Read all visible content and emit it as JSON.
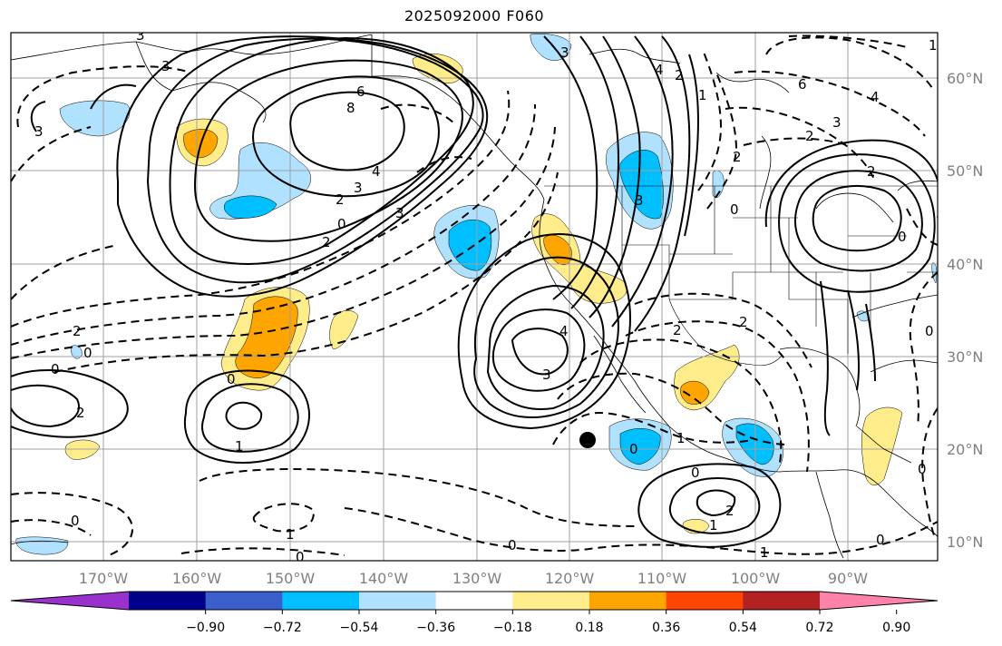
{
  "title": "2025092000 F060",
  "lon_labels": [
    "170°W",
    "160°W",
    "150°W",
    "140°W",
    "130°W",
    "120°W",
    "110°W",
    "100°W",
    "90°W"
  ],
  "lat_labels": [
    "60°N",
    "50°N",
    "40°N",
    "30°N",
    "20°N",
    "10°N"
  ],
  "colorbar": {
    "colors": [
      "#9932cc",
      "#00008b",
      "#3a5fcd",
      "#00bfff",
      "#b0e2ff",
      "#ffffff",
      "#ffec8b",
      "#ffa500",
      "#ff4500",
      "#b22222",
      "#ff82ab"
    ],
    "tick_labels": [
      "−0.90",
      "−0.72",
      "−0.54",
      "−0.36",
      "−0.18",
      "0.18",
      "0.36",
      "0.54",
      "0.72",
      "0.90"
    ]
  },
  "contour_labels": [
    {
      "text": "3"
    },
    {
      "text": "6"
    },
    {
      "text": "8"
    },
    {
      "text": "4"
    },
    {
      "text": "3"
    },
    {
      "text": "2"
    },
    {
      "text": "0"
    },
    {
      "text": "2"
    },
    {
      "text": "3"
    },
    {
      "text": "3"
    },
    {
      "text": "2"
    },
    {
      "text": "0"
    },
    {
      "text": "0"
    },
    {
      "text": "2"
    },
    {
      "text": "1"
    },
    {
      "text": "0"
    },
    {
      "text": "1"
    },
    {
      "text": "0"
    },
    {
      "text": "3"
    },
    {
      "text": "3"
    },
    {
      "text": "4"
    },
    {
      "text": "3"
    },
    {
      "text": "2"
    },
    {
      "text": "0"
    },
    {
      "text": "0"
    },
    {
      "text": "1"
    },
    {
      "text": "0"
    },
    {
      "text": "2"
    },
    {
      "text": "1"
    },
    {
      "text": "0"
    },
    {
      "text": "4"
    },
    {
      "text": "2"
    },
    {
      "text": "1"
    },
    {
      "text": "6"
    },
    {
      "text": "4"
    },
    {
      "text": "3"
    },
    {
      "text": "2"
    },
    {
      "text": "2"
    },
    {
      "text": "0"
    },
    {
      "text": "0"
    },
    {
      "text": "0"
    },
    {
      "text": "1"
    },
    {
      "text": "2"
    },
    {
      "text": "0"
    },
    {
      "text": "0"
    },
    {
      "text": "2"
    },
    {
      "text": "1"
    },
    {
      "text": "3"
    }
  ],
  "colors": {
    "frame": "#000000",
    "grid": "#a0a0a0",
    "axis_label": "#808080",
    "coast": "#000000",
    "marker": "#000000"
  }
}
